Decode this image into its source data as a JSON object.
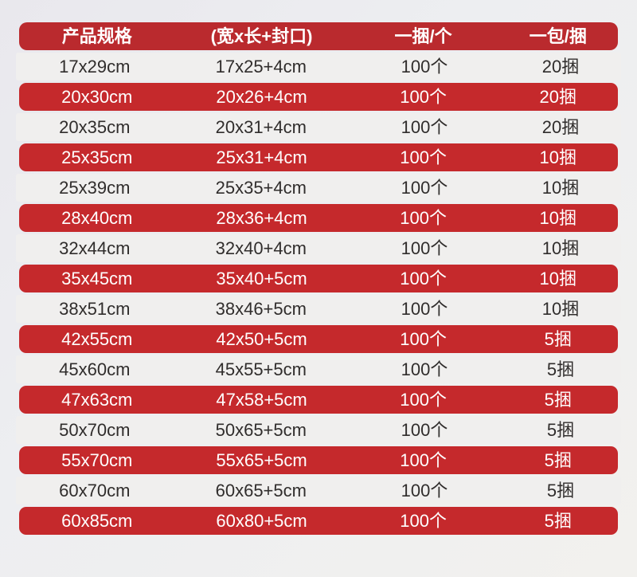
{
  "page": {
    "bg_gradient_start": "#e9e8ed",
    "bg_gradient_end": "#f2f1ee"
  },
  "colors": {
    "header_bg": "#ba2a2e",
    "row_red_bg": "#c5292c",
    "row_light_bg": "#f0efee",
    "header_text": "#ffffff",
    "row_red_text": "#ffffff",
    "row_light_text": "#302d2c"
  },
  "table": {
    "headers": [
      "产品规格",
      "(宽x长+封口)",
      "一捆/个",
      "一包/捆"
    ],
    "rows": [
      {
        "spec": "17x29cm",
        "dims": "17x25+4cm",
        "per_bundle": "100个",
        "per_pack": "20捆",
        "variant": "light"
      },
      {
        "spec": "20x30cm",
        "dims": "20x26+4cm",
        "per_bundle": "100个",
        "per_pack": "20捆",
        "variant": "red"
      },
      {
        "spec": "20x35cm",
        "dims": "20x31+4cm",
        "per_bundle": "100个",
        "per_pack": "20捆",
        "variant": "light"
      },
      {
        "spec": "25x35cm",
        "dims": "25x31+4cm",
        "per_bundle": "100个",
        "per_pack": "10捆",
        "variant": "red"
      },
      {
        "spec": "25x39cm",
        "dims": "25x35+4cm",
        "per_bundle": "100个",
        "per_pack": "10捆",
        "variant": "light"
      },
      {
        "spec": "28x40cm",
        "dims": "28x36+4cm",
        "per_bundle": "100个",
        "per_pack": "10捆",
        "variant": "red"
      },
      {
        "spec": "32x44cm",
        "dims": "32x40+4cm",
        "per_bundle": "100个",
        "per_pack": "10捆",
        "variant": "light"
      },
      {
        "spec": "35x45cm",
        "dims": "35x40+5cm",
        "per_bundle": "100个",
        "per_pack": "10捆",
        "variant": "red"
      },
      {
        "spec": "38x51cm",
        "dims": "38x46+5cm",
        "per_bundle": "100个",
        "per_pack": "10捆",
        "variant": "light"
      },
      {
        "spec": "42x55cm",
        "dims": "42x50+5cm",
        "per_bundle": "100个",
        "per_pack": "5捆",
        "variant": "red"
      },
      {
        "spec": "45x60cm",
        "dims": "45x55+5cm",
        "per_bundle": "100个",
        "per_pack": "5捆",
        "variant": "light"
      },
      {
        "spec": "47x63cm",
        "dims": "47x58+5cm",
        "per_bundle": "100个",
        "per_pack": "5捆",
        "variant": "red"
      },
      {
        "spec": "50x70cm",
        "dims": "50x65+5cm",
        "per_bundle": "100个",
        "per_pack": "5捆",
        "variant": "light"
      },
      {
        "spec": "55x70cm",
        "dims": "55x65+5cm",
        "per_bundle": "100个",
        "per_pack": "5捆",
        "variant": "red"
      },
      {
        "spec": "60x70cm",
        "dims": "60x65+5cm",
        "per_bundle": "100个",
        "per_pack": "5捆",
        "variant": "light"
      },
      {
        "spec": "60x85cm",
        "dims": "60x80+5cm",
        "per_bundle": "100个",
        "per_pack": "5捆",
        "variant": "red"
      }
    ]
  }
}
